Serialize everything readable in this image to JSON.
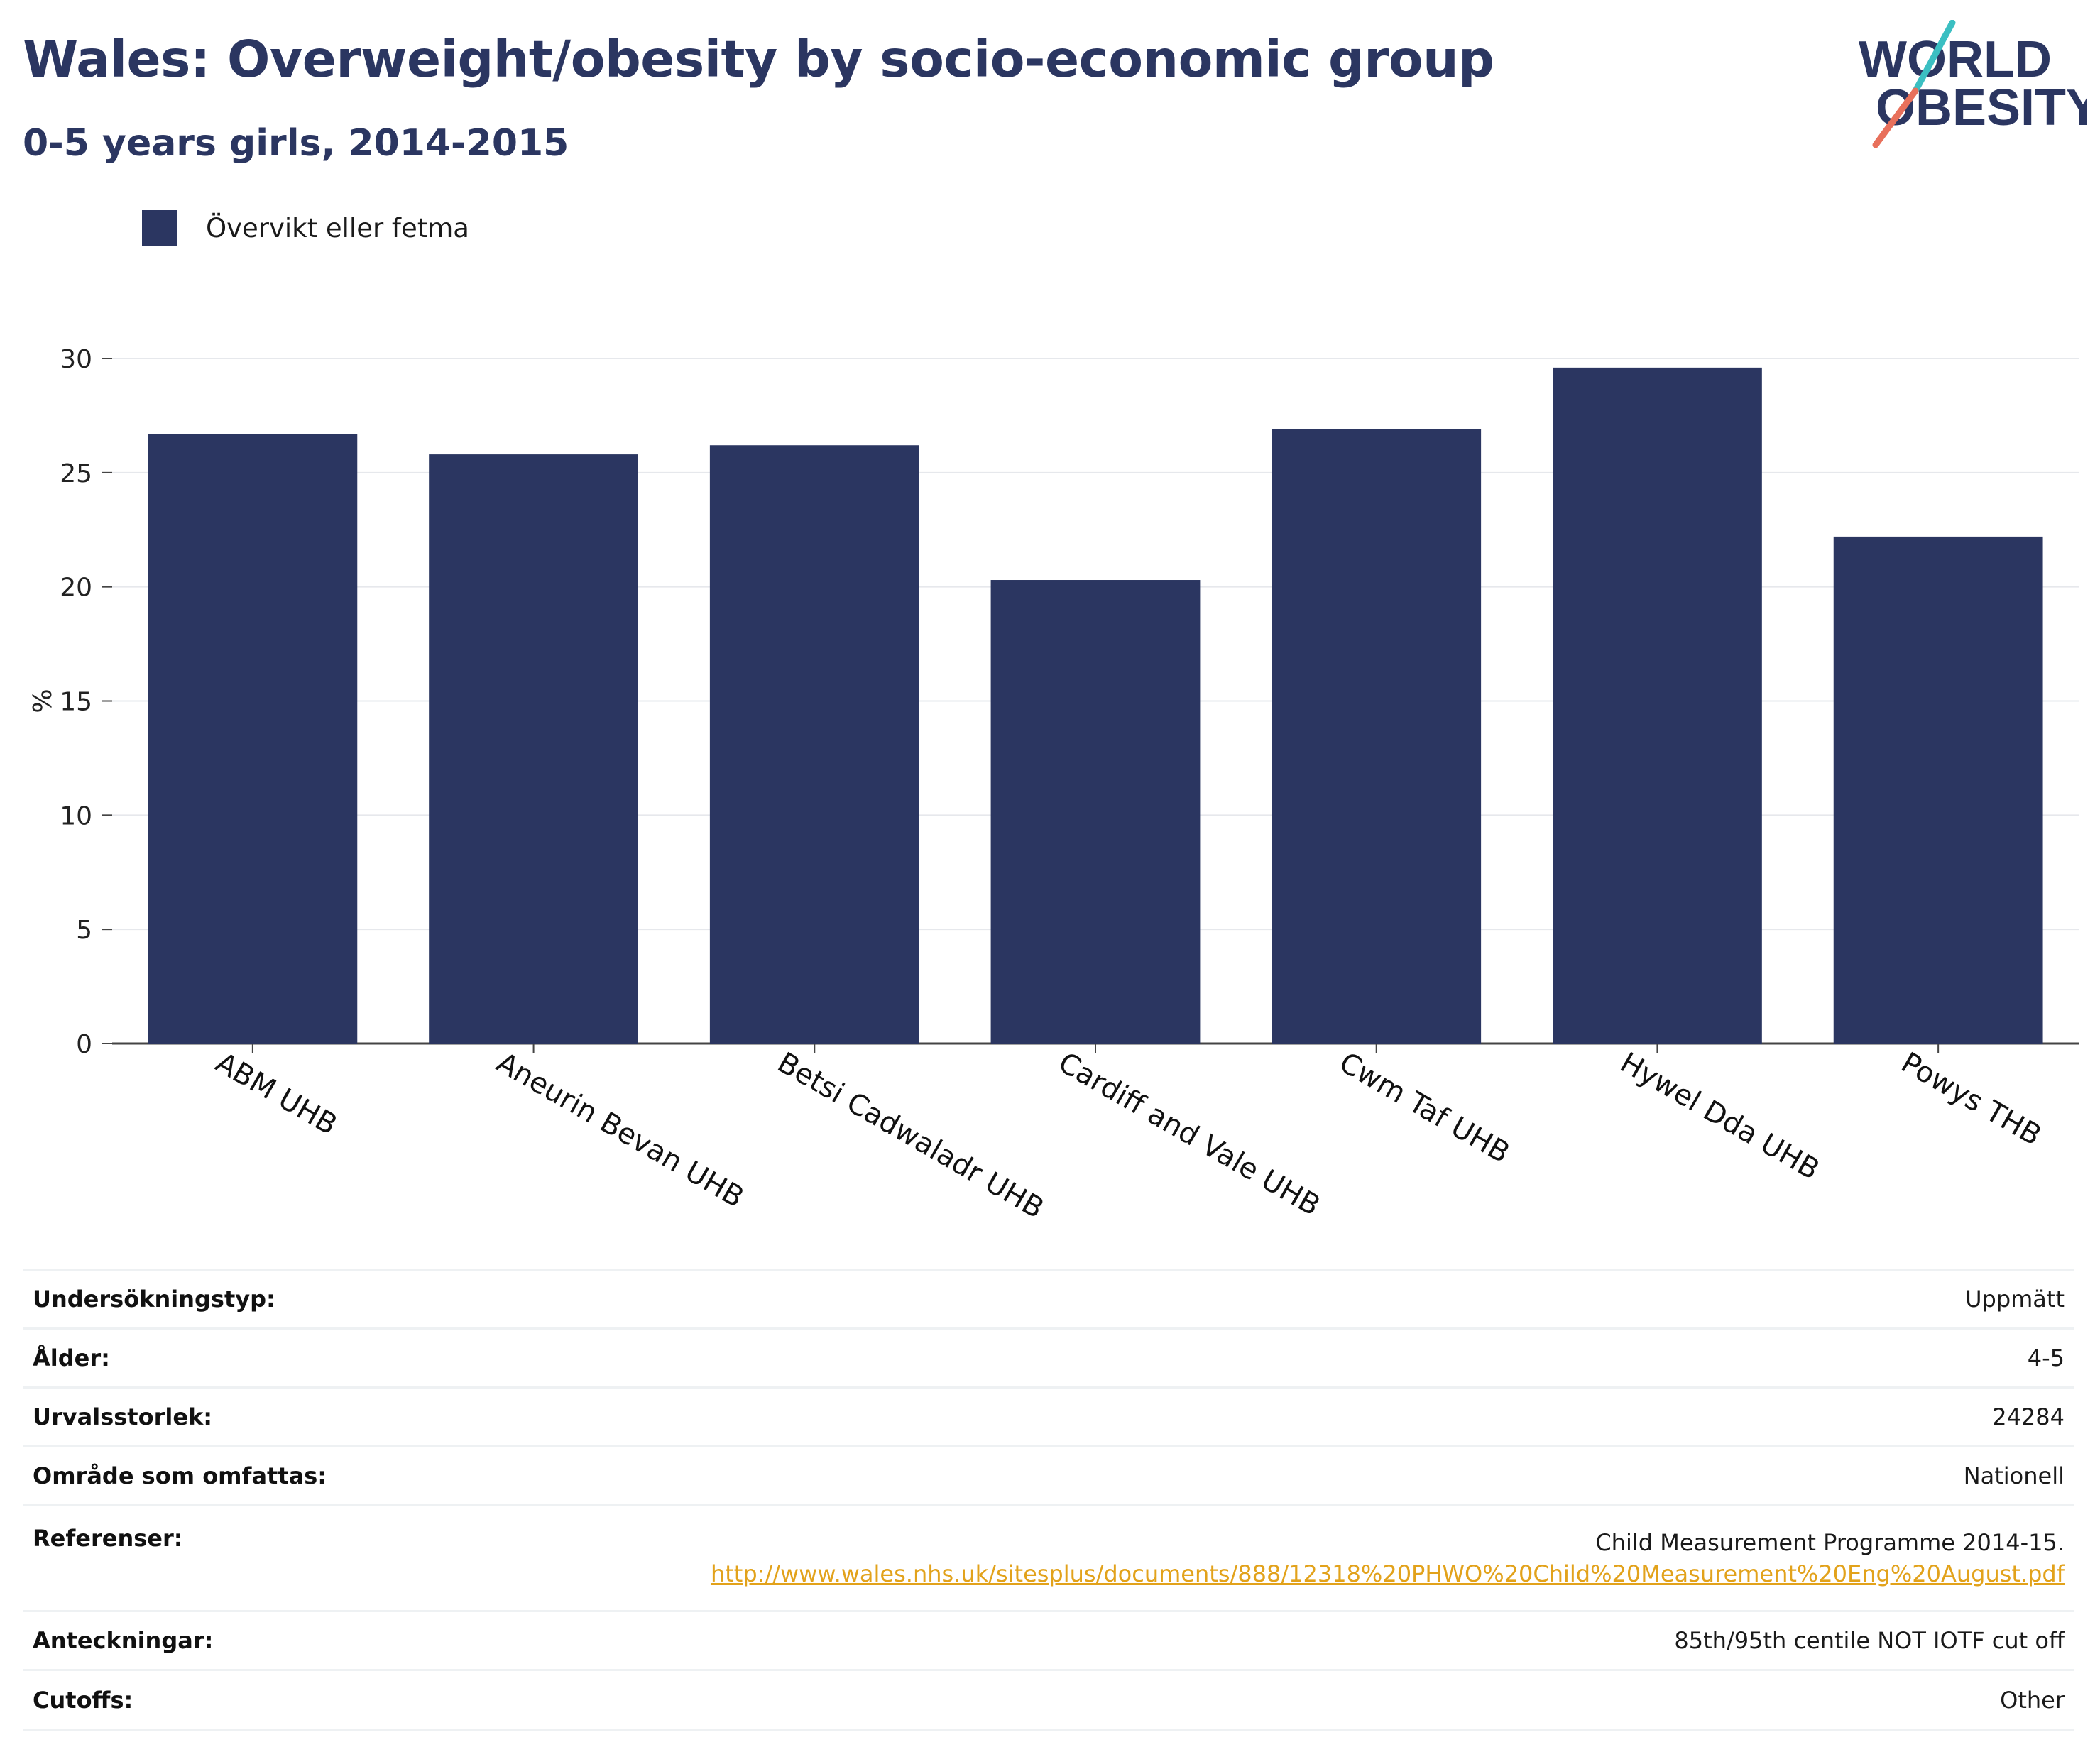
{
  "header": {
    "title": "Wales: Overweight/obesity by socio-economic group",
    "subtitle": "0-5 years girls, 2014-2015"
  },
  "logo": {
    "line1": "WORLD",
    "line2": "OBESITY",
    "colors": {
      "text": "#2b3661",
      "slash_top": "#3bbfc2",
      "slash_bottom": "#e8705b"
    }
  },
  "legend": {
    "label": "Övervikt eller fetma",
    "color": "#2b3661"
  },
  "chart_data": {
    "type": "bar",
    "categories": [
      "ABM UHB",
      "Aneurin Bevan UHB",
      "Betsi Cadwaladr UHB",
      "Cardiff and Vale UHB",
      "Cwm Taf UHB",
      "Hywel Dda UHB",
      "Powys THB"
    ],
    "series": [
      {
        "name": "Övervikt eller fetma",
        "values": [
          26.7,
          25.8,
          26.2,
          20.3,
          26.9,
          29.6,
          22.2
        ],
        "color": "#2b3661"
      }
    ],
    "ylabel": "%",
    "ylim": [
      0,
      30
    ],
    "yticks": [
      0,
      5,
      10,
      15,
      20,
      25,
      30
    ],
    "grid": true,
    "legend_position": "top-left"
  },
  "info": {
    "survey_type": {
      "label": "Undersökningstyp:",
      "value": "Uppmätt"
    },
    "age": {
      "label": "Ålder:",
      "value": "4-5"
    },
    "sample_size": {
      "label": "Urvalsstorlek:",
      "value": "24284"
    },
    "area": {
      "label": "Område som omfattas:",
      "value": "Nationell"
    },
    "references": {
      "label": "Referenser:",
      "value": "Child Measurement Programme 2014-15.",
      "link": "http://www.wales.nhs.uk/sitesplus/documents/888/12318%20PHWO%20Child%20Measurement%20Eng%20August.pdf"
    },
    "notes": {
      "label": "Anteckningar:",
      "value": "85th/95th centile NOT IOTF cut off"
    },
    "cutoffs": {
      "label": "Cutoffs:",
      "value": "Other"
    }
  }
}
